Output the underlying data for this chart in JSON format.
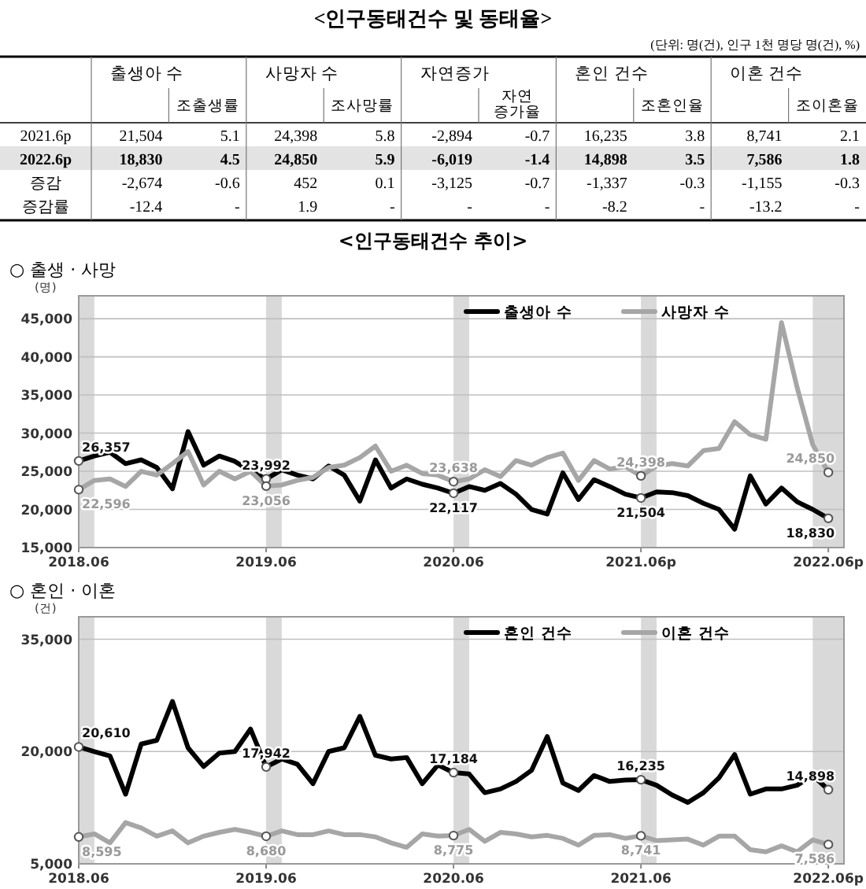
{
  "chart_data": [
    {
      "type": "other",
      "title": "<인구동태건수 및 동태율>",
      "subtitle": "(단위: 명(건), 인구 1천 명당 명(건), %)",
      "annotations": [
        "출생아 수",
        "사망자 수",
        "자연증가",
        "혼인 건수",
        "이혼 건수",
        "조출생률",
        "조사망률",
        "자연 증가율",
        "조혼인율",
        "조이혼율",
        "2021.6p",
        "21,504",
        "5.1",
        "24,398",
        "5.8",
        "-2,894",
        "-0.7",
        "16,235",
        "3.8",
        "8,741",
        "2.1",
        "2022.6p",
        "18,830",
        "4.5",
        "24,850",
        "5.9",
        "-6,019",
        "-1.4",
        "14,898",
        "3.5",
        "7,586",
        "1.8",
        "증감",
        "-2,674",
        "-0.6",
        "452",
        "0.1",
        "-3,125",
        "-0.7",
        "-1,337",
        "-0.3",
        "-1,155",
        "-0.3",
        "증감률",
        "-12.4",
        "-",
        "1.9",
        "-",
        "-",
        "-",
        "-8.2",
        "-",
        "-13.2",
        "-"
      ]
    },
    {
      "type": "line",
      "title": "<인구동태건수 추이>",
      "subtitle": "○ 출생 · 사망",
      "ylabel": "(명)",
      "x": [
        "2018-06",
        "2018-07",
        "2018-08",
        "2018-09",
        "2018-10",
        "2018-11",
        "2018-12",
        "2019-01",
        "2019-02",
        "2019-03",
        "2019-04",
        "2019-05",
        "2019-06",
        "2019-07",
        "2019-08",
        "2019-09",
        "2019-10",
        "2019-11",
        "2019-12",
        "2020-01",
        "2020-02",
        "2020-03",
        "2020-04",
        "2020-05",
        "2020-06",
        "2020-07",
        "2020-08",
        "2020-09",
        "2020-10",
        "2020-11",
        "2020-12",
        "2021-01",
        "2021-02",
        "2021-03",
        "2021-04",
        "2021-05",
        "2021-06",
        "2021-07",
        "2021-08",
        "2021-09",
        "2021-10",
        "2021-11",
        "2021-12",
        "2022-01",
        "2022-02",
        "2022-03",
        "2022-04",
        "2022-05",
        "2022-06"
      ],
      "series": [
        {
          "name": "출생아 수",
          "color": "#000000",
          "values": [
            26357,
            27000,
            27500,
            26000,
            26500,
            25500,
            22700,
            30200,
            25800,
            27000,
            26300,
            25000,
            23992,
            25200,
            24500,
            24000,
            25700,
            24500,
            21100,
            26500,
            22800,
            24000,
            23300,
            22800,
            22117,
            23000,
            22500,
            23400,
            22000,
            20000,
            19400,
            24800,
            21300,
            23900,
            23000,
            22000,
            21504,
            22300,
            22200,
            21800,
            20800,
            20000,
            17400,
            24400,
            20700,
            22800,
            21000,
            20000,
            18830
          ]
        },
        {
          "name": "사망자 수",
          "color": "#a6a6a6",
          "values": [
            22596,
            23800,
            24000,
            23000,
            25000,
            24500,
            26000,
            27600,
            23200,
            25000,
            24000,
            25000,
            23056,
            23200,
            23800,
            24200,
            25500,
            25800,
            26800,
            28300,
            25000,
            25800,
            24700,
            24500,
            23638,
            24000,
            25200,
            24300,
            26400,
            25800,
            26800,
            27400,
            23800,
            26400,
            25300,
            25600,
            24398,
            25700,
            26000,
            25700,
            27700,
            28000,
            31500,
            29800,
            29200,
            44500,
            36000,
            28500,
            24850
          ]
        }
      ],
      "xlim": [
        "2018-06",
        "2022-07"
      ],
      "xticks": [
        {
          "value": "2018-06",
          "label": "2018.06"
        },
        {
          "value": "2019-06",
          "label": "2019.06"
        },
        {
          "value": "2020-06",
          "label": "2020.06"
        },
        {
          "value": "2021-06",
          "label": "2021.06p"
        },
        {
          "value": "2022-06",
          "label": "2022.06p"
        }
      ],
      "ylim": [
        15000,
        48000
      ],
      "yticks": [
        {
          "value": 15000,
          "label": "15,000"
        },
        {
          "value": 20000,
          "label": "20,000"
        },
        {
          "value": 25000,
          "label": "25,000"
        },
        {
          "value": 30000,
          "label": "30,000"
        },
        {
          "value": 35000,
          "label": "35,000"
        },
        {
          "value": 40000,
          "label": "40,000"
        },
        {
          "value": 45000,
          "label": "45,000"
        }
      ],
      "bands": [
        {
          "axis": "x",
          "from": "2018-06",
          "to": "2018-07",
          "color": "#d9d9d9"
        },
        {
          "axis": "x",
          "from": "2019-06",
          "to": "2019-07",
          "color": "#d9d9d9"
        },
        {
          "axis": "x",
          "from": "2020-06",
          "to": "2020-07",
          "color": "#d9d9d9"
        },
        {
          "axis": "x",
          "from": "2021-06",
          "to": "2021-07",
          "color": "#d9d9d9"
        },
        {
          "axis": "x",
          "from": "2022-05",
          "to": "2022-07",
          "color": "#d9d9d9"
        }
      ],
      "annotations": [
        {
          "text": "26,357",
          "x": "2018-06",
          "y": 26357
        },
        {
          "text": "22,596",
          "x": "2018-06",
          "y": 22596
        },
        {
          "text": "23,992",
          "x": "2019-06",
          "y": 23992
        },
        {
          "text": "23,056",
          "x": "2019-06",
          "y": 23056
        },
        {
          "text": "22,117",
          "x": "2020-06",
          "y": 22117
        },
        {
          "text": "23,638",
          "x": "2020-06",
          "y": 23638
        },
        {
          "text": "21,504",
          "x": "2021-06",
          "y": 21504
        },
        {
          "text": "24,398",
          "x": "2021-06",
          "y": 24398
        },
        {
          "text": "18,830",
          "x": "2022-06",
          "y": 18830
        },
        {
          "text": "24,850",
          "x": "2022-06",
          "y": 24850
        }
      ],
      "grid": "y",
      "legend": "top right",
      "line_style": "solid"
    },
    {
      "type": "line",
      "title": "○ 혼인 · 이혼",
      "ylabel": "(건)",
      "x": [
        "2018-06",
        "2018-07",
        "2018-08",
        "2018-09",
        "2018-10",
        "2018-11",
        "2018-12",
        "2019-01",
        "2019-02",
        "2019-03",
        "2019-04",
        "2019-05",
        "2019-06",
        "2019-07",
        "2019-08",
        "2019-09",
        "2019-10",
        "2019-11",
        "2019-12",
        "2020-01",
        "2020-02",
        "2020-03",
        "2020-04",
        "2020-05",
        "2020-06",
        "2020-07",
        "2020-08",
        "2020-09",
        "2020-10",
        "2020-11",
        "2020-12",
        "2021-01",
        "2021-02",
        "2021-03",
        "2021-04",
        "2021-05",
        "2021-06",
        "2021-07",
        "2021-08",
        "2021-09",
        "2021-10",
        "2021-11",
        "2021-12",
        "2022-01",
        "2022-02",
        "2022-03",
        "2022-04",
        "2022-05",
        "2022-06"
      ],
      "series": [
        {
          "name": "혼인 건수",
          "color": "#000000",
          "values": [
            20610,
            20000,
            19400,
            14300,
            21000,
            21500,
            26700,
            20500,
            18000,
            19800,
            20000,
            23000,
            17942,
            19000,
            18300,
            15700,
            20000,
            20500,
            24700,
            19500,
            19000,
            19200,
            15700,
            18200,
            17184,
            17000,
            14500,
            15000,
            16000,
            17500,
            22000,
            15800,
            14800,
            16800,
            16000,
            16200,
            16235,
            15500,
            14200,
            13200,
            14500,
            16500,
            19600,
            14300,
            15000,
            15000,
            15500,
            16800,
            14898
          ]
        },
        {
          "name": "이혼 건수",
          "color": "#a6a6a6",
          "values": [
            8595,
            9000,
            7800,
            10500,
            9800,
            8700,
            9400,
            7800,
            8700,
            9200,
            9600,
            9200,
            8680,
            9400,
            8900,
            8900,
            9400,
            8900,
            8900,
            8600,
            7800,
            7200,
            9000,
            8700,
            8775,
            9600,
            8000,
            9200,
            9000,
            8600,
            8800,
            8400,
            7500,
            8800,
            8900,
            8400,
            8741,
            8100,
            8200,
            8300,
            7500,
            8700,
            8700,
            6900,
            6600,
            7400,
            6600,
            8200,
            7586
          ]
        }
      ],
      "xlim": [
        "2018-06",
        "2022-07"
      ],
      "xticks": [
        {
          "value": "2018-06",
          "label": "2018.06"
        },
        {
          "value": "2019-06",
          "label": "2019.06"
        },
        {
          "value": "2020-06",
          "label": "2020.06"
        },
        {
          "value": "2021-06",
          "label": "2021.06"
        },
        {
          "value": "2022-06",
          "label": "2022.06p"
        }
      ],
      "ylim": [
        5000,
        38000
      ],
      "yticks": [
        {
          "value": 5000,
          "label": "5,000"
        },
        {
          "value": 20000,
          "label": "20,000"
        },
        {
          "value": 35000,
          "label": "35,000"
        }
      ],
      "bands": [
        {
          "axis": "x",
          "from": "2018-06",
          "to": "2018-07",
          "color": "#d9d9d9"
        },
        {
          "axis": "x",
          "from": "2019-06",
          "to": "2019-07",
          "color": "#d9d9d9"
        },
        {
          "axis": "x",
          "from": "2020-06",
          "to": "2020-07",
          "color": "#d9d9d9"
        },
        {
          "axis": "x",
          "from": "2021-06",
          "to": "2021-07",
          "color": "#d9d9d9"
        },
        {
          "axis": "x",
          "from": "2022-05",
          "to": "2022-07",
          "color": "#d9d9d9"
        }
      ],
      "annotations": [
        {
          "text": "20,610",
          "x": "2018-06",
          "y": 20610
        },
        {
          "text": "8,595",
          "x": "2018-06",
          "y": 8595
        },
        {
          "text": "17,942",
          "x": "2019-06",
          "y": 17942
        },
        {
          "text": "8,680",
          "x": "2019-06",
          "y": 8680
        },
        {
          "text": "17,184",
          "x": "2020-06",
          "y": 17184
        },
        {
          "text": "8,775",
          "x": "2020-06",
          "y": 8775
        },
        {
          "text": "16,235",
          "x": "2021-06",
          "y": 16235
        },
        {
          "text": "8,741",
          "x": "2021-06",
          "y": 8741
        },
        {
          "text": "14,898",
          "x": "2022-06",
          "y": 14898
        },
        {
          "text": "7,586",
          "x": "2022-06",
          "y": 7586
        }
      ],
      "grid": "y",
      "legend": "top right",
      "line_style": "solid"
    }
  ]
}
